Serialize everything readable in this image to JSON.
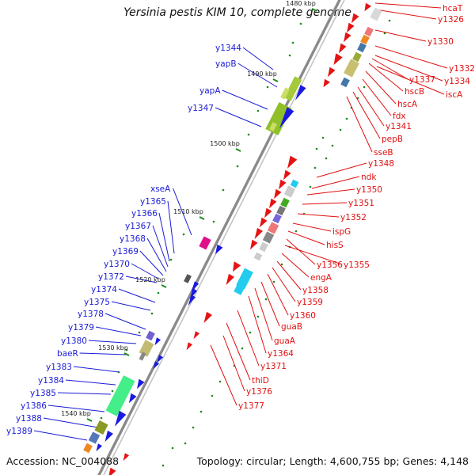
{
  "title": "Yersinia pestis KIM 10, complete genome",
  "accession": "Accession: NC_004088",
  "topology": "Topology: circular; Length: 4,600,755 bp; Genes: 4,148",
  "colors": {
    "plus_strand_label": "#1a1ad6",
    "minus_strand_label": "#e01010",
    "backbone": "#8a8a8a",
    "tick": "#1a8a1a"
  },
  "ticks": [
    "1480 kbp",
    "1490 kbp",
    "1500 kbp",
    "1510 kbp",
    "1520 kbp",
    "1530 kbp",
    "1540 kbp"
  ],
  "left_labels": [
    "y1344",
    "yapB",
    "yapA",
    "y1347",
    "xseA",
    "y1365",
    "y1366",
    "y1367",
    "y1368",
    "y1369",
    "y1370",
    "y1372",
    "y1374",
    "y1375",
    "y1378",
    "y1379",
    "y1380",
    "baeR",
    "y1383",
    "y1384",
    "y1385",
    "y1386",
    "y1388",
    "y1389"
  ],
  "right_labels": [
    "hcaT",
    "y1326",
    "y1330",
    "y1332",
    "y1337",
    "y1334",
    "hscB",
    "iscA",
    "hscA",
    "fdx",
    "y1341",
    "pepB",
    "sseB",
    "y1348",
    "ndk",
    "y1350",
    "y1351",
    "y1352",
    "ispG",
    "hisS",
    "y1356",
    "y1355",
    "engA",
    "y1358",
    "y1359",
    "y1360",
    "guaB",
    "guaA",
    "y1364",
    "y1371",
    "thiD",
    "y1376",
    "y1377"
  ]
}
